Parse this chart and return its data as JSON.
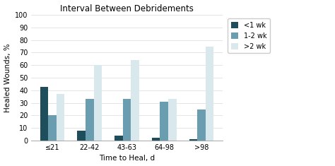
{
  "title": "Interval Between Debridements",
  "xlabel": "Time to Heal, d",
  "ylabel": "Healed Wounds, %",
  "categories": [
    "≤21",
    "22-42",
    "43-63",
    "64-98",
    ">98"
  ],
  "series": {
    "<1 wk": [
      43,
      8,
      4,
      2,
      1
    ],
    "1-2 wk": [
      20,
      33,
      33,
      31,
      25
    ],
    ">2 wk": [
      37,
      60,
      64,
      33,
      75
    ]
  },
  "colors": {
    "<1 wk": "#1e4d5c",
    "1-2 wk": "#6a9daf",
    ">2 wk": "#d8e8ed"
  },
  "ylim": [
    0,
    100
  ],
  "yticks": [
    0,
    10,
    20,
    30,
    40,
    50,
    60,
    70,
    80,
    90,
    100
  ],
  "legend_labels": [
    "<1 wk",
    "1-2 wk",
    ">2 wk"
  ],
  "bar_width": 0.22,
  "title_fontsize": 8.5,
  "label_fontsize": 7.5,
  "tick_fontsize": 7,
  "legend_fontsize": 7,
  "background_color": "#ffffff",
  "grid_color": "#e0e0e0"
}
